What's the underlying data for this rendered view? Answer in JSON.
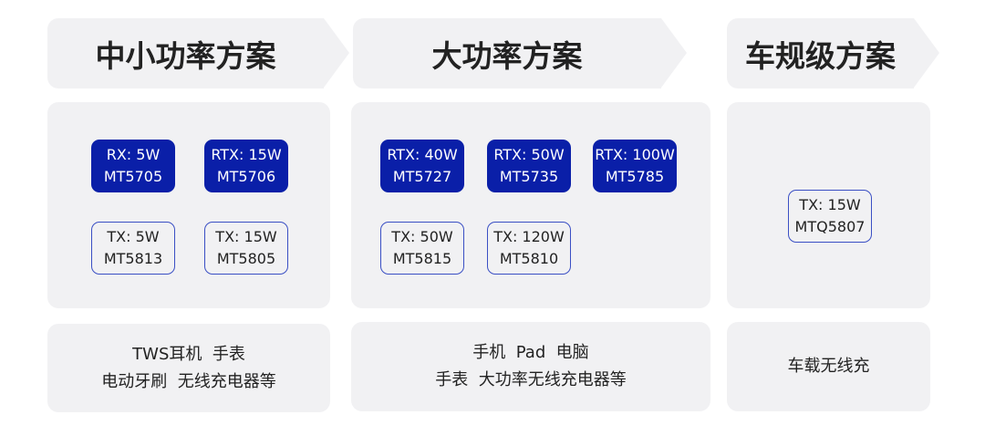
{
  "columns": [
    {
      "title": "中小功率方案",
      "chips": [
        {
          "line1": "RX: 5W",
          "line2": "MT5705",
          "style": "solid"
        },
        {
          "line1": "RTX: 15W",
          "line2": "MT5706",
          "style": "solid"
        },
        {
          "line1": "TX: 5W",
          "line2": "MT5813",
          "style": "outline"
        },
        {
          "line1": "TX: 15W",
          "line2": "MT5805",
          "style": "outline"
        }
      ],
      "applications": [
        "TWS耳机  手表",
        "电动牙刷  无线充电器等"
      ]
    },
    {
      "title": "大功率方案",
      "chips": [
        {
          "line1": "RTX: 40W",
          "line2": "MT5727",
          "style": "solid"
        },
        {
          "line1": "RTX: 50W",
          "line2": "MT5735",
          "style": "solid"
        },
        {
          "line1": "RTX: 100W",
          "line2": "MT5785",
          "style": "solid"
        },
        {
          "line1": "TX: 50W",
          "line2": "MT5815",
          "style": "outline"
        },
        {
          "line1": "TX: 120W",
          "line2": "MT5810",
          "style": "outline"
        }
      ],
      "applications": [
        "手机  Pad  电脑",
        "手表  大功率无线充电器等"
      ]
    },
    {
      "title": "车规级方案",
      "chips": [
        {
          "line1": "TX: 15W",
          "line2": "MTQ5807",
          "style": "outline"
        }
      ],
      "applications": [
        "车载无线充"
      ]
    }
  ],
  "colors": {
    "chip_fill": "#0a1fa8",
    "chip_outline": "#3a4fc4",
    "panel": "#f1f1f3"
  }
}
